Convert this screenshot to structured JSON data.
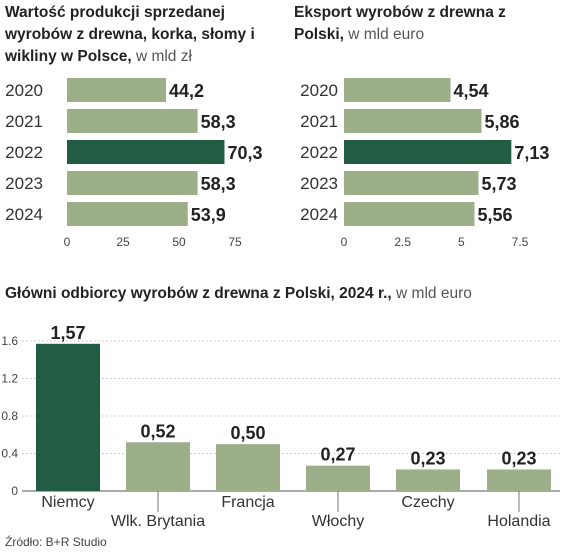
{
  "colors": {
    "bar": "#9caf88",
    "highlight": "#225c43",
    "axis": "#555555",
    "grid": "#aaaaaa"
  },
  "charts": {
    "production": {
      "title": "Wartość produkcji sprzedanej wyrobów z drewna, korka, słomy i wikliny w Polsce,",
      "unit": " w mld zł"
    },
    "export": {
      "title": "Eksport wyrobów z drewna z Polski,",
      "unit": " w mld euro"
    },
    "recipients": {
      "title": "Główni odbiorcy wyrobów z drewna z Polski, 2024 r.,",
      "unit": " w mld euro"
    }
  },
  "chart_data": [
    {
      "type": "bar",
      "orientation": "horizontal",
      "title": "Wartość produkcji sprzedanej wyrobów z drewna, korka, słomy i wikliny w Polsce, w mld zł",
      "categories": [
        "2020",
        "2021",
        "2022",
        "2023",
        "2024"
      ],
      "values": [
        44.2,
        58.3,
        70.3,
        58.3,
        53.9
      ],
      "value_labels": [
        "44,2",
        "58,3",
        "70,3",
        "58,3",
        "53,9"
      ],
      "highlight": "2022",
      "xticks": [
        "0",
        "25",
        "50",
        "75"
      ],
      "xlim": [
        0,
        75
      ]
    },
    {
      "type": "bar",
      "orientation": "horizontal",
      "title": "Eksport wyrobów z drewna z Polski, w mld euro",
      "categories": [
        "2020",
        "2021",
        "2022",
        "2023",
        "2024"
      ],
      "values": [
        4.54,
        5.86,
        7.13,
        5.73,
        5.56
      ],
      "value_labels": [
        "4,54",
        "5,86",
        "7,13",
        "5,73",
        "5,56"
      ],
      "highlight": "2022",
      "xticks": [
        "0",
        "2.5",
        "5",
        "7.5"
      ],
      "xlim": [
        0,
        7.5
      ]
    },
    {
      "type": "bar",
      "orientation": "vertical",
      "title": "Główni odbiorcy wyrobów z drewna z Polski, 2024 r., w mld euro",
      "categories": [
        "Niemcy",
        "Wlk. Brytania",
        "Francja",
        "Włochy",
        "Czechy",
        "Holandia"
      ],
      "values": [
        1.57,
        0.52,
        0.5,
        0.27,
        0.23,
        0.23
      ],
      "value_labels": [
        "1,57",
        "0,52",
        "0,50",
        "0,27",
        "0,23",
        "0,23"
      ],
      "highlight": "Niemcy",
      "yticks": [
        "0",
        "0.4",
        "0.8",
        "1.2",
        "1.6"
      ],
      "ylim": [
        0,
        1.6
      ]
    }
  ],
  "source": "Źródło: B+R Studio"
}
